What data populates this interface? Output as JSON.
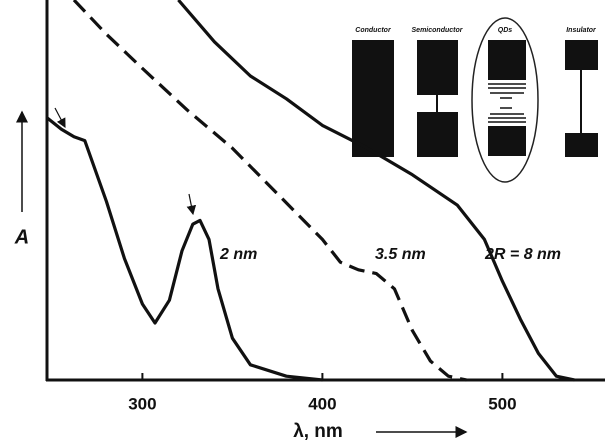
{
  "chart_data": {
    "type": "line",
    "xlabel": "λ, nm",
    "ylabel": "A",
    "xlim": [
      247,
      557
    ],
    "ylim": [
      0,
      1
    ],
    "xticks": [
      300,
      400,
      500
    ],
    "series": [
      {
        "name": "2 nm",
        "color": "#111111",
        "dash": "solid",
        "x": [
          247,
          255,
          262,
          268,
          280,
          290,
          300,
          307,
          315,
          322,
          328,
          332,
          337,
          342,
          350,
          360,
          380,
          400
        ],
        "values": [
          0.69,
          0.66,
          0.64,
          0.63,
          0.47,
          0.32,
          0.2,
          0.15,
          0.21,
          0.34,
          0.41,
          0.42,
          0.37,
          0.24,
          0.11,
          0.04,
          0.01,
          0
        ]
      },
      {
        "name": "3.5 nm",
        "color": "#111111",
        "dash": "dashed",
        "x": [
          262,
          280,
          300,
          325,
          350,
          375,
          400,
          410,
          420,
          430,
          440,
          450,
          460,
          470,
          480
        ],
        "values": [
          1.0,
          0.91,
          0.82,
          0.71,
          0.61,
          0.49,
          0.37,
          0.31,
          0.29,
          0.28,
          0.24,
          0.13,
          0.05,
          0.01,
          0
        ]
      },
      {
        "name": "2R = 8 nm",
        "color": "#111111",
        "dash": "solid",
        "x": [
          320,
          340,
          360,
          380,
          400,
          425,
          450,
          475,
          490,
          500,
          510,
          520,
          530,
          540
        ],
        "values": [
          1.0,
          0.89,
          0.8,
          0.74,
          0.67,
          0.61,
          0.54,
          0.46,
          0.37,
          0.26,
          0.16,
          0.07,
          0.01,
          0
        ]
      }
    ],
    "inset_labels": [
      "Conductor",
      "Semiconductor",
      "QDs",
      "Insulator"
    ]
  }
}
